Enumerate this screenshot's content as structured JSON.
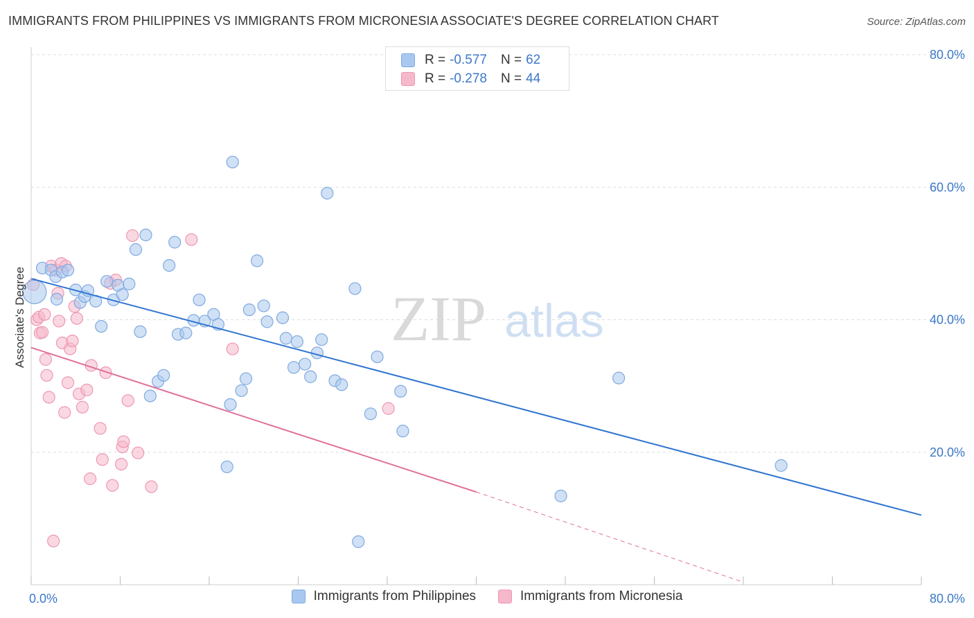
{
  "header": {
    "title": "IMMIGRANTS FROM PHILIPPINES VS IMMIGRANTS FROM MICRONESIA ASSOCIATE'S DEGREE CORRELATION CHART",
    "source": "Source: ZipAtlas.com"
  },
  "watermark": {
    "zip": "ZIP",
    "atlas": "atlas"
  },
  "legend_top": [
    {
      "r_label": "R =",
      "r_value": "-0.577",
      "n_label": "N =",
      "n_value": "62"
    },
    {
      "r_label": "R =",
      "r_value": "-0.278",
      "n_label": "N =",
      "n_value": "44"
    }
  ],
  "colors": {
    "blue_fill": "#a9c8ef",
    "blue_stroke": "#7fa9e0",
    "blue_line": "#2f74d0",
    "pink_fill": "#f6b8cb",
    "pink_stroke": "#ee97b2",
    "pink_line": "#e0709a",
    "tick_text": "#3b78c9",
    "grid": "#dddddd"
  },
  "chart_data": {
    "type": "scatter",
    "ylabel": "Associate's Degree",
    "xlim": [
      0,
      80
    ],
    "ylim": [
      0,
      80
    ],
    "x_tick_labels": {
      "min": "0.0%",
      "max": "80.0%"
    },
    "y_ticks": [
      {
        "value": 20,
        "label": "20.0%"
      },
      {
        "value": 40,
        "label": "40.0%"
      },
      {
        "value": 60,
        "label": "60.0%"
      },
      {
        "value": 80,
        "label": "80.0%"
      }
    ],
    "grid": true,
    "legend_position": "bottom-center",
    "series": [
      {
        "name": "Immigrants from Philippines",
        "color": "blue",
        "points": [
          [
            0.3,
            44.2
          ],
          [
            1.0,
            47.8
          ],
          [
            1.8,
            47.5
          ],
          [
            2.2,
            46.5
          ],
          [
            2.3,
            43.1
          ],
          [
            2.8,
            47.2
          ],
          [
            3.3,
            47.5
          ],
          [
            4.0,
            44.5
          ],
          [
            4.4,
            42.6
          ],
          [
            4.8,
            43.5
          ],
          [
            5.1,
            44.4
          ],
          [
            5.8,
            42.8
          ],
          [
            6.3,
            39.0
          ],
          [
            6.8,
            45.8
          ],
          [
            7.4,
            43.0
          ],
          [
            7.8,
            45.2
          ],
          [
            8.2,
            43.8
          ],
          [
            8.8,
            45.4
          ],
          [
            9.4,
            50.6
          ],
          [
            9.8,
            38.2
          ],
          [
            10.3,
            52.8
          ],
          [
            10.7,
            28.5
          ],
          [
            11.4,
            30.7
          ],
          [
            11.9,
            31.6
          ],
          [
            12.4,
            48.2
          ],
          [
            12.9,
            51.7
          ],
          [
            13.2,
            37.8
          ],
          [
            13.9,
            38.0
          ],
          [
            14.6,
            39.9
          ],
          [
            15.1,
            43.0
          ],
          [
            15.6,
            39.8
          ],
          [
            16.4,
            40.8
          ],
          [
            16.8,
            39.3
          ],
          [
            17.6,
            17.8
          ],
          [
            17.9,
            27.2
          ],
          [
            18.1,
            63.8
          ],
          [
            18.9,
            29.3
          ],
          [
            19.3,
            31.1
          ],
          [
            19.6,
            41.5
          ],
          [
            20.3,
            48.9
          ],
          [
            20.9,
            42.1
          ],
          [
            21.2,
            39.7
          ],
          [
            22.6,
            40.3
          ],
          [
            22.9,
            37.2
          ],
          [
            23.6,
            32.8
          ],
          [
            23.9,
            36.7
          ],
          [
            24.6,
            33.3
          ],
          [
            25.1,
            31.4
          ],
          [
            25.7,
            35.0
          ],
          [
            26.1,
            37.0
          ],
          [
            26.6,
            59.1
          ],
          [
            27.3,
            30.8
          ],
          [
            27.9,
            30.2
          ],
          [
            29.1,
            44.7
          ],
          [
            29.4,
            6.5
          ],
          [
            30.5,
            25.8
          ],
          [
            31.1,
            34.4
          ],
          [
            33.2,
            29.2
          ],
          [
            33.4,
            23.2
          ],
          [
            47.6,
            13.4
          ],
          [
            52.8,
            31.2
          ],
          [
            67.4,
            18.0
          ]
        ],
        "trend": {
          "x0": 0,
          "y0": 46.2,
          "x1": 80,
          "y1": 10.5
        }
      },
      {
        "name": "Immigrants from Micronesia",
        "color": "pink",
        "points": [
          [
            0.2,
            45.3
          ],
          [
            0.5,
            40.0
          ],
          [
            0.7,
            40.4
          ],
          [
            0.8,
            38.0
          ],
          [
            1.0,
            38.1
          ],
          [
            1.2,
            40.8
          ],
          [
            1.3,
            34.0
          ],
          [
            1.4,
            31.6
          ],
          [
            1.6,
            28.3
          ],
          [
            1.8,
            48.1
          ],
          [
            2.0,
            6.6
          ],
          [
            2.2,
            47.5
          ],
          [
            2.4,
            44.0
          ],
          [
            2.5,
            39.8
          ],
          [
            2.7,
            48.5
          ],
          [
            2.8,
            36.5
          ],
          [
            3.0,
            26.0
          ],
          [
            3.1,
            48.1
          ],
          [
            3.3,
            30.5
          ],
          [
            3.5,
            35.6
          ],
          [
            3.7,
            36.8
          ],
          [
            3.9,
            42.0
          ],
          [
            4.1,
            40.2
          ],
          [
            4.3,
            28.8
          ],
          [
            4.6,
            26.8
          ],
          [
            5.0,
            29.4
          ],
          [
            5.3,
            16.0
          ],
          [
            5.4,
            33.1
          ],
          [
            6.2,
            23.6
          ],
          [
            6.4,
            18.9
          ],
          [
            6.7,
            32.0
          ],
          [
            7.1,
            45.5
          ],
          [
            7.3,
            15.0
          ],
          [
            7.6,
            46.0
          ],
          [
            8.1,
            18.2
          ],
          [
            8.2,
            20.8
          ],
          [
            8.3,
            21.6
          ],
          [
            8.7,
            27.8
          ],
          [
            9.1,
            52.7
          ],
          [
            9.6,
            19.9
          ],
          [
            10.8,
            14.8
          ],
          [
            14.4,
            52.1
          ],
          [
            18.1,
            35.6
          ],
          [
            32.1,
            26.6
          ]
        ],
        "trend": {
          "x0": 0,
          "y0": 35.8,
          "x1": 40,
          "y1": 14.0,
          "dashed_to_x": 64,
          "dashed_to_y": 0.4
        }
      }
    ]
  },
  "bottom_legend": [
    {
      "label": "Immigrants from Philippines"
    },
    {
      "label": "Immigrants from Micronesia"
    }
  ]
}
